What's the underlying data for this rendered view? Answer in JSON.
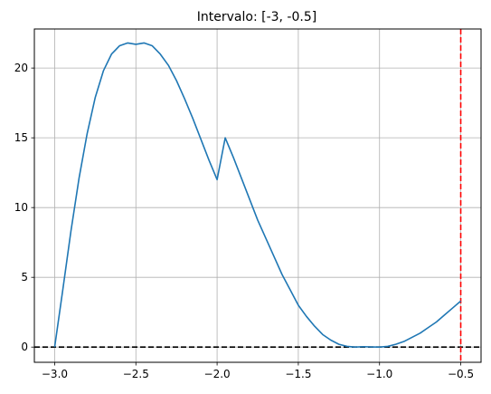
{
  "chart_data": {
    "type": "line",
    "title": "Intervalo: [-3, -0.5]",
    "xlabel": "",
    "ylabel": "",
    "xlim": [
      -3.125,
      -0.375
    ],
    "ylim": [
      -1.09,
      22.8
    ],
    "grid": true,
    "x_ticks": [
      -3.0,
      -2.5,
      -2.0,
      -1.5,
      -1.0,
      -0.5
    ],
    "x_tick_labels": [
      "−3.0",
      "−2.5",
      "−2.0",
      "−1.5",
      "−1.0",
      "−0.5"
    ],
    "y_ticks": [
      0,
      5,
      10,
      15,
      20
    ],
    "y_tick_labels": [
      "0",
      "5",
      "10",
      "15",
      "20"
    ],
    "series": [
      {
        "color": "#1f77b4",
        "x": [
          -3.0,
          -2.95,
          -2.9,
          -2.85,
          -2.8,
          -2.75,
          -2.7,
          -2.65,
          -2.6,
          -2.55,
          -2.5,
          -2.45,
          -2.4,
          -2.35,
          -2.3,
          -2.25,
          -2.2,
          -2.15,
          -2.1,
          -2.05,
          -2.0,
          -1.95,
          -1.9,
          -1.85,
          -1.8,
          -1.75,
          -1.7,
          -1.65,
          -1.6,
          -1.55,
          -1.5,
          -1.45,
          -1.4,
          -1.35,
          -1.3,
          -1.25,
          -1.2,
          -1.15,
          -1.1,
          -1.05,
          -1.0,
          -0.95,
          -0.9,
          -0.85,
          -0.8,
          -0.75,
          -0.7,
          -0.65,
          -0.6,
          -0.55,
          -0.5
        ],
        "y": [
          0.0,
          4.1,
          8.3,
          12.1,
          15.3,
          17.9,
          19.8,
          21.0,
          21.6,
          21.8,
          21.7,
          21.8,
          21.6,
          21.0,
          20.2,
          19.1,
          17.8,
          16.4,
          14.9,
          13.4,
          12.0,
          15.0,
          13.6,
          12.1,
          10.6,
          9.1,
          7.8,
          6.5,
          5.2,
          4.1,
          3.0,
          2.2,
          1.5,
          0.9,
          0.5,
          0.2,
          0.05,
          0.0,
          0.03,
          0.01,
          0.0,
          0.05,
          0.2,
          0.4,
          0.7,
          1.0,
          1.4,
          1.8,
          2.3,
          2.8,
          3.3
        ]
      }
    ],
    "hlines": [
      {
        "y": 0,
        "color": "#000000",
        "style": "dashed"
      }
    ],
    "vlines": [
      {
        "x": -0.5,
        "color": "#ff0000",
        "style": "dashed"
      }
    ]
  }
}
